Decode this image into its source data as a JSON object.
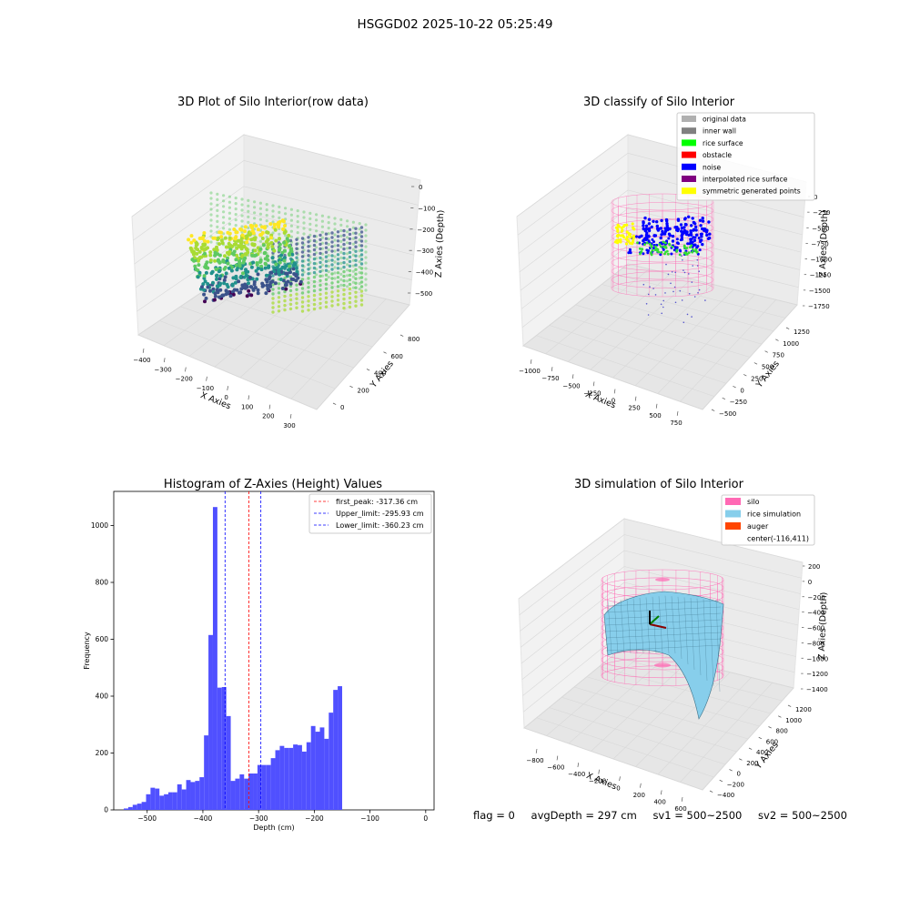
{
  "suptitle": "HSGGD02 2025-10-22 05:25:49",
  "footer": {
    "flag": "flag = 0",
    "avg_depth": "avgDepth = 297 cm",
    "sv1": "sv1 = 500~2500",
    "sv2": "sv2 = 500~2500"
  },
  "colors": {
    "histogram_bar": "#5050ff",
    "first_peak_line": "#ff0000",
    "limit_lines": "#0000ff",
    "silo_wire": "#ff69b4",
    "rice_sim": "#87ceeb",
    "auger": "#ff4500"
  },
  "chart_data": [
    {
      "type": "scatter",
      "title": "3D Plot of Silo Interior(row data)",
      "xlabel": "X Axies",
      "ylabel": "Y Axies",
      "zlabel": "Z Axies (Depth)",
      "x_ticks": [
        "−400",
        "−300",
        "−200",
        "−100",
        "0",
        "100",
        "200",
        "300"
      ],
      "y_ticks": [
        "0",
        "200",
        "400",
        "600",
        "800"
      ],
      "z_ticks": [
        "0",
        "−100",
        "−200",
        "−300",
        "−400",
        "−500"
      ],
      "colormap": "viridis",
      "grid": true
    },
    {
      "type": "scatter",
      "title": "3D classify of Silo Interior",
      "xlabel": "X Axies",
      "ylabel": "Y Axies",
      "zlabel": "Z Axies (Depth)",
      "x_ticks": [
        "−1000",
        "−750",
        "−500",
        "−250",
        "0",
        "250",
        "500",
        "750"
      ],
      "y_ticks": [
        "−500",
        "−250",
        "0",
        "250",
        "500",
        "750",
        "1000",
        "1250"
      ],
      "z_ticks": [
        "0",
        "−250",
        "−500",
        "−750",
        "−1000",
        "−1250",
        "−1500",
        "−1750"
      ],
      "legend_position": "top-right",
      "legend": [
        {
          "label": "original data",
          "color": "#b0b0b0"
        },
        {
          "label": "inner wall",
          "color": "#808080"
        },
        {
          "label": "rice surface",
          "color": "#00ff00"
        },
        {
          "label": "obstacle",
          "color": "#ff0000"
        },
        {
          "label": "noise",
          "color": "#0000ff"
        },
        {
          "label": "interpolated rice surface",
          "color": "#800080"
        },
        {
          "label": "symmetric generated points",
          "color": "#ffff00"
        }
      ],
      "grid": true
    },
    {
      "type": "bar",
      "title": "Histogram of Z-Axies (Height) Values",
      "xlabel": "Depth (cm)",
      "ylabel": "Frequency",
      "xlim": [
        -560,
        15
      ],
      "ylim": [
        0,
        1120
      ],
      "x_ticks": [
        -500,
        -400,
        -300,
        -200,
        -100,
        0
      ],
      "y_ticks": [
        0,
        200,
        400,
        600,
        800,
        1000
      ],
      "bin_width": 8,
      "bin_start": -542,
      "values": [
        5,
        10,
        18,
        22,
        28,
        55,
        78,
        75,
        50,
        55,
        62,
        62,
        90,
        72,
        105,
        98,
        102,
        115,
        262,
        615,
        1065,
        430,
        432,
        330,
        102,
        110,
        125,
        110,
        128,
        128,
        158,
        158,
        158,
        182,
        210,
        225,
        218,
        218,
        230,
        228,
        205,
        238,
        295,
        275,
        290,
        250,
        342,
        422,
        435
      ],
      "vlines": [
        {
          "name": "first_peak",
          "label": "first_peak: -317.36 cm",
          "x": -317.36,
          "style": "dashed",
          "color": "#ff0000"
        },
        {
          "name": "Upper_limit",
          "label": "Upper_limit: -295.93 cm",
          "x": -295.93,
          "style": "dashed",
          "color": "#0000ff"
        },
        {
          "name": "Lower_limit",
          "label": "Lower_limit: -360.23 cm",
          "x": -360.23,
          "style": "dashed",
          "color": "#0000ff"
        }
      ],
      "legend_position": "top-right",
      "grid": false
    },
    {
      "type": "area",
      "title": "3D simulation of Silo Interior",
      "xlabel": "X Axies",
      "ylabel": "Y Axies",
      "zlabel": "Z Axies (Depth)",
      "x_ticks": [
        "−800",
        "−600",
        "−400",
        "−200",
        "0",
        "200",
        "400",
        "600"
      ],
      "y_ticks": [
        "−400",
        "−200",
        "0",
        "200",
        "400",
        "600",
        "800",
        "1000",
        "1200"
      ],
      "z_ticks": [
        "200",
        "0",
        "−200",
        "−400",
        "−600",
        "−800",
        "−1000",
        "−1200",
        "−1400"
      ],
      "legend_position": "top-right",
      "legend": [
        {
          "label": "silo",
          "color": "#ff69b4"
        },
        {
          "label": "rice simulation",
          "color": "#87ceeb"
        },
        {
          "label": "auger",
          "color": "#ff4500"
        },
        {
          "label": "center(-116,411)",
          "color": ""
        }
      ],
      "grid": true
    }
  ]
}
